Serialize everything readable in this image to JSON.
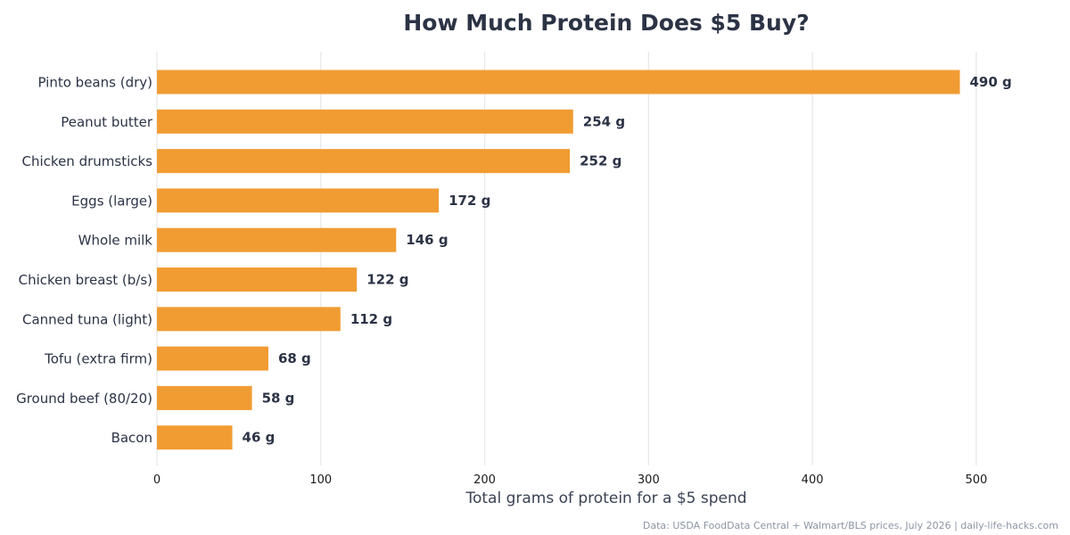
{
  "chart_data": {
    "type": "bar",
    "orientation": "horizontal",
    "title": "How Much Protein Does $5 Buy?",
    "xlabel": "Total grams of protein for a $5 spend",
    "ylabel": "",
    "categories": [
      "Pinto beans (dry)",
      "Peanut butter",
      "Chicken drumsticks",
      "Eggs (large)",
      "Whole milk",
      "Chicken breast (b/s)",
      "Canned tuna (light)",
      "Tofu (extra firm)",
      "Ground beef (80/20)",
      "Bacon"
    ],
    "values": [
      490,
      254,
      252,
      172,
      146,
      122,
      112,
      68,
      58,
      46
    ],
    "value_labels": [
      "490 g",
      "254 g",
      "252 g",
      "172 g",
      "146 g",
      "122 g",
      "112 g",
      "68 g",
      "58 g",
      "46 g"
    ],
    "xlim": [
      0,
      530
    ],
    "xticks": [
      0,
      100,
      200,
      300,
      400,
      500
    ],
    "xtick_labels": [
      "0",
      "100",
      "200",
      "300",
      "400",
      "500"
    ],
    "grid": "vertical",
    "legend": "none",
    "colors": {
      "bar": "#f19c33",
      "title": "#2b3345",
      "grid": "#e6e6e6",
      "footer": "#8c95a3"
    },
    "footer": "Data: USDA FoodData Central + Walmart/BLS prices, July 2026  |  daily-life-hacks.com"
  }
}
